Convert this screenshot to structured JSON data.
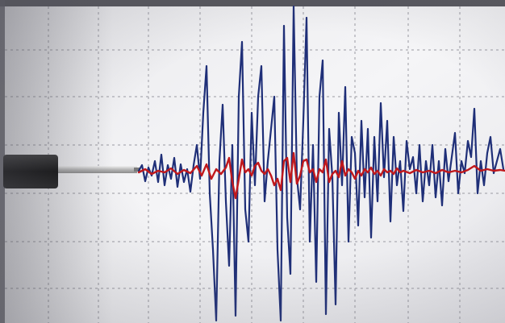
{
  "scene": {
    "description_colors": {
      "paper": "#f3f3f5",
      "grid_line": "#9a9aa2",
      "trace_blue": "#1f2f78",
      "trace_red": "#c0181c",
      "stylus_body": "#1a1a1a",
      "stylus_arm": "#c9c9c9"
    },
    "grid": {
      "visible": true,
      "style": "dashed"
    },
    "icon": "seismograph"
  }
}
